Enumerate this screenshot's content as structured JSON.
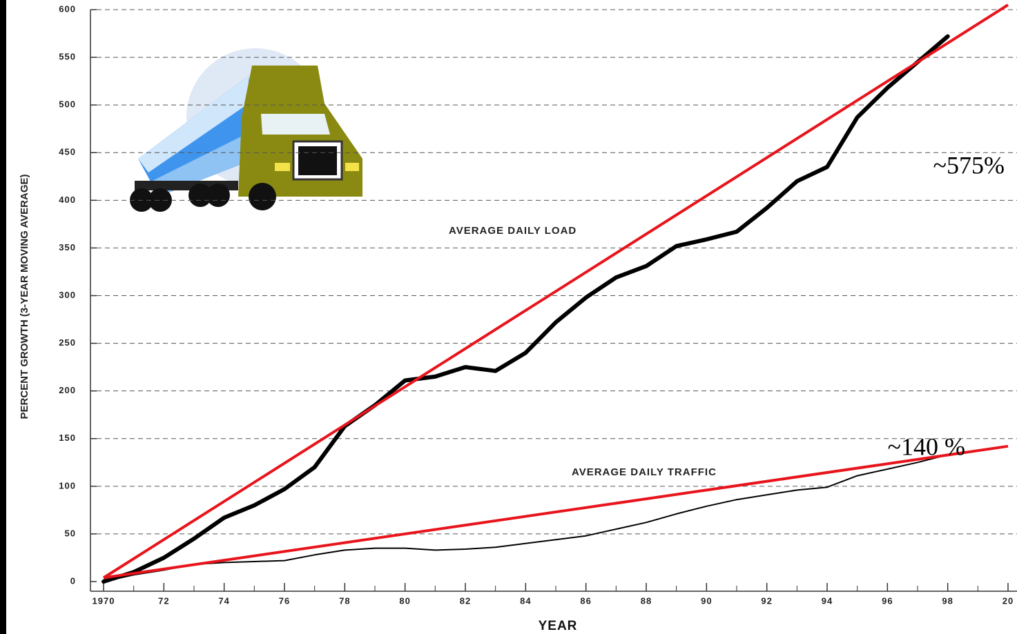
{
  "chart_data": {
    "type": "line",
    "y_label": "PERCENT GROWTH (3-YEAR MOVING AVERAGE)",
    "x_label": "YEAR",
    "x": [
      1970,
      1971,
      1972,
      1973,
      1974,
      1975,
      1976,
      1977,
      1978,
      1979,
      1980,
      1981,
      1982,
      1983,
      1984,
      1985,
      1986,
      1987,
      1988,
      1989,
      1990,
      1991,
      1992,
      1993,
      1994,
      1995,
      1996,
      1997,
      1998
    ],
    "series": [
      {
        "name": "AVERAGE DAILY LOAD",
        "color": "#000000",
        "values": [
          0,
          10,
          25,
          45,
          67,
          80,
          97,
          120,
          163,
          185,
          211,
          215,
          225,
          221,
          240,
          272,
          298,
          319,
          331,
          352,
          359,
          367,
          392,
          420,
          435,
          487,
          518,
          545,
          572
        ]
      },
      {
        "name": "AVERAGE DAILY TRAFFIC",
        "color": "#000000",
        "values": [
          0,
          7,
          12,
          18,
          20,
          21,
          22,
          28,
          33,
          35,
          35,
          33,
          34,
          36,
          40,
          44,
          48,
          55,
          62,
          71,
          79,
          86,
          91,
          96,
          99,
          111,
          118,
          125,
          133
        ]
      }
    ],
    "trend_lines": [
      {
        "color": "#e8141b",
        "x": [
          1970,
          2000
        ],
        "values": [
          4,
          605
        ]
      },
      {
        "color": "#e8141b",
        "x": [
          1970,
          2000
        ],
        "values": [
          4,
          142
        ]
      }
    ],
    "annotations": [
      "~575%",
      "~140 %"
    ],
    "xlim": [
      1970,
      2000
    ],
    "ylim": [
      0,
      600
    ],
    "xticks": [
      1970,
      {
        "value": 1972,
        "label": "72"
      },
      {
        "value": 1974,
        "label": "74"
      },
      {
        "value": 1976,
        "label": "76"
      },
      {
        "value": 1978,
        "label": "78"
      },
      {
        "value": 1980,
        "label": "80"
      },
      {
        "value": 1982,
        "label": "82"
      },
      {
        "value": 1984,
        "label": "84"
      },
      {
        "value": 1986,
        "label": "86"
      },
      {
        "value": 1988,
        "label": "88"
      },
      {
        "value": 1990,
        "label": "90"
      },
      {
        "value": 1992,
        "label": "92"
      },
      {
        "value": 1994,
        "label": "94"
      },
      {
        "value": 1996,
        "label": "96"
      },
      {
        "value": 1998,
        "label": "98"
      },
      {
        "value": 2000,
        "label": "20"
      }
    ],
    "yticks": [
      0,
      50,
      100,
      150,
      200,
      250,
      300,
      350,
      400,
      450,
      500,
      550,
      600
    ],
    "grid": true
  }
}
